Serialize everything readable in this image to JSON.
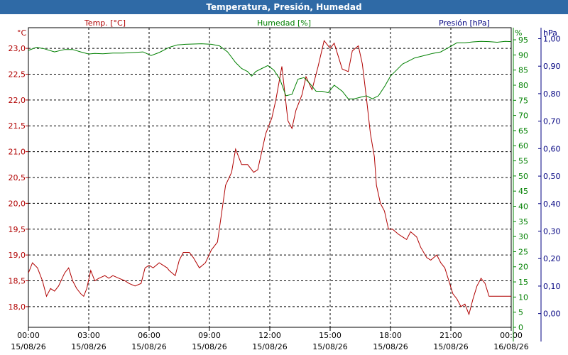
{
  "window": {
    "title": "Temperatura, Presión, Humedad"
  },
  "chart_data": {
    "type": "line",
    "title": "Temperatura, Presión, Humedad",
    "grid": true,
    "colors": {
      "temp": "#b00000",
      "hum": "#008000",
      "pres": "#000080",
      "title_bar": "#2f6aa6"
    },
    "x_ticks": [
      {
        "time": "00:00",
        "date": "15/08/26"
      },
      {
        "time": "03:00",
        "date": "15/08/26"
      },
      {
        "time": "06:00",
        "date": "15/08/26"
      },
      {
        "time": "09:00",
        "date": "15/08/26"
      },
      {
        "time": "12:00",
        "date": "15/08/26"
      },
      {
        "time": "15:00",
        "date": "15/08/26"
      },
      {
        "time": "18:00",
        "date": "15/08/26"
      },
      {
        "time": "21:00",
        "date": "15/08/26"
      },
      {
        "time": "00:00",
        "date": "16/08/26"
      }
    ],
    "x_range_hours": [
      0,
      24
    ],
    "axes": {
      "temp": {
        "label": "Temp. [°C]",
        "unit": "°C",
        "range": [
          17.6,
          23.4
        ],
        "ticks": [
          "18,0",
          "18,5",
          "19,0",
          "19,5",
          "20,0",
          "20,5",
          "21,0",
          "21,5",
          "22,0",
          "22,5",
          "23,0"
        ]
      },
      "hum": {
        "label": "Humedad [%]",
        "unit": "%",
        "range": [
          0,
          99
        ],
        "ticks": [
          "0",
          "5",
          "10",
          "15",
          "20",
          "25",
          "30",
          "35",
          "40",
          "45",
          "50",
          "55",
          "60",
          "65",
          "70",
          "75",
          "80",
          "85",
          "90",
          "95"
        ]
      },
      "pres": {
        "label": "Presión [hPa]",
        "unit": "hPa",
        "range": [
          -0.05,
          1.04
        ],
        "ticks": [
          "0,00",
          "0,10",
          "0,20",
          "0,30",
          "0,40",
          "0,50",
          "0,60",
          "0,70",
          "0,80",
          "0,90",
          "1,00"
        ]
      }
    },
    "series": [
      {
        "name": "Temp. [°C]",
        "axis": "temp",
        "x": [
          0,
          0.2,
          0.45,
          0.7,
          0.9,
          1.1,
          1.3,
          1.5,
          1.8,
          2.0,
          2.2,
          2.4,
          2.6,
          2.75,
          2.9,
          3.1,
          3.3,
          3.5,
          3.8,
          4.0,
          4.2,
          4.5,
          4.8,
          5.0,
          5.3,
          5.6,
          5.8,
          6.0,
          6.2,
          6.5,
          6.7,
          6.9,
          7.0,
          7.3,
          7.5,
          7.7,
          8.0,
          8.2,
          8.5,
          8.8,
          9.1,
          9.4,
          9.6,
          9.8,
          10.1,
          10.3,
          10.6,
          10.9,
          11.2,
          11.4,
          11.6,
          11.8,
          12.1,
          12.3,
          12.6,
          12.9,
          13.1,
          13.3,
          13.6,
          13.8,
          14.1,
          14.4,
          14.7,
          15.0,
          15.2,
          15.6,
          15.9,
          16.1,
          16.4,
          16.6,
          16.8,
          17.0,
          17.2,
          17.3,
          17.5,
          17.7,
          17.9,
          18.1,
          18.4,
          18.6,
          18.8,
          19.0,
          19.3,
          19.5,
          19.8,
          20.0,
          20.3,
          20.5,
          20.7,
          20.9,
          21.1,
          21.3,
          21.5,
          21.7,
          21.9,
          22.1,
          22.3,
          22.5,
          22.7,
          22.9,
          23.1,
          23.3,
          23.5,
          23.7,
          23.85,
          24.0
        ],
        "values": [
          18.65,
          18.85,
          18.75,
          18.5,
          18.2,
          18.35,
          18.3,
          18.4,
          18.65,
          18.75,
          18.5,
          18.35,
          18.25,
          18.2,
          18.35,
          18.7,
          18.5,
          18.55,
          18.6,
          18.55,
          18.6,
          18.55,
          18.5,
          18.45,
          18.4,
          18.45,
          18.75,
          18.8,
          18.75,
          18.85,
          18.8,
          18.75,
          18.7,
          18.6,
          18.9,
          19.05,
          19.05,
          18.95,
          18.75,
          18.85,
          19.1,
          19.25,
          19.8,
          20.35,
          20.6,
          21.05,
          20.75,
          20.75,
          20.6,
          20.65,
          21.0,
          21.35,
          21.65,
          22.0,
          22.65,
          21.6,
          21.45,
          21.8,
          22.1,
          22.45,
          22.2,
          22.65,
          23.15,
          23.0,
          23.1,
          22.6,
          22.55,
          22.95,
          23.05,
          22.7,
          22.05,
          21.35,
          20.9,
          20.35,
          20.0,
          19.85,
          19.5,
          19.5,
          19.4,
          19.35,
          19.3,
          19.45,
          19.35,
          19.15,
          18.95,
          18.9,
          19.0,
          18.85,
          18.75,
          18.5,
          18.25,
          18.15,
          18.0,
          18.05,
          17.85,
          18.15,
          18.4,
          18.55,
          18.45,
          18.2,
          18.2,
          18.2,
          18.2,
          18.2,
          18.2,
          18.2
        ]
      },
      {
        "name": "Humedad [%]",
        "axis": "hum",
        "x": [
          0,
          0.4,
          0.8,
          1.3,
          1.8,
          2.2,
          2.6,
          3.0,
          3.3,
          3.7,
          4.2,
          4.7,
          5.2,
          5.7,
          6.1,
          6.5,
          7.0,
          7.4,
          7.8,
          8.2,
          8.6,
          9.1,
          9.5,
          9.9,
          10.3,
          10.6,
          10.9,
          11.1,
          11.3,
          11.6,
          11.9,
          12.2,
          12.5,
          12.8,
          13.1,
          13.4,
          13.7,
          14.0,
          14.3,
          14.6,
          14.9,
          15.2,
          15.6,
          15.9,
          16.2,
          16.5,
          16.8,
          17.1,
          17.4,
          17.7,
          18.0,
          18.3,
          18.6,
          18.9,
          19.2,
          19.5,
          19.8,
          20.1,
          20.5,
          20.9,
          21.3,
          21.7,
          22.1,
          22.5,
          22.9,
          23.3,
          23.7,
          24.0
        ],
        "values": [
          91.5,
          92.5,
          92.0,
          91.0,
          91.8,
          91.8,
          91.0,
          90.3,
          90.5,
          90.4,
          90.6,
          90.6,
          90.8,
          91.0,
          89.8,
          90.8,
          92.5,
          93.3,
          93.5,
          93.6,
          93.7,
          93.5,
          93.0,
          91.0,
          87.5,
          85.5,
          84.5,
          83.0,
          84.5,
          85.5,
          86.5,
          85.0,
          82.0,
          76.5,
          77.0,
          82.0,
          82.5,
          80.5,
          78.0,
          78.0,
          77.5,
          80.0,
          78.0,
          75.5,
          75.5,
          76.0,
          76.5,
          75.5,
          76.5,
          79.5,
          83.0,
          85.0,
          87.0,
          88.0,
          89.0,
          89.5,
          90.0,
          90.5,
          91.0,
          92.5,
          94.0,
          94.0,
          94.3,
          94.5,
          94.4,
          94.2,
          94.5,
          94.4
        ]
      }
    ]
  }
}
